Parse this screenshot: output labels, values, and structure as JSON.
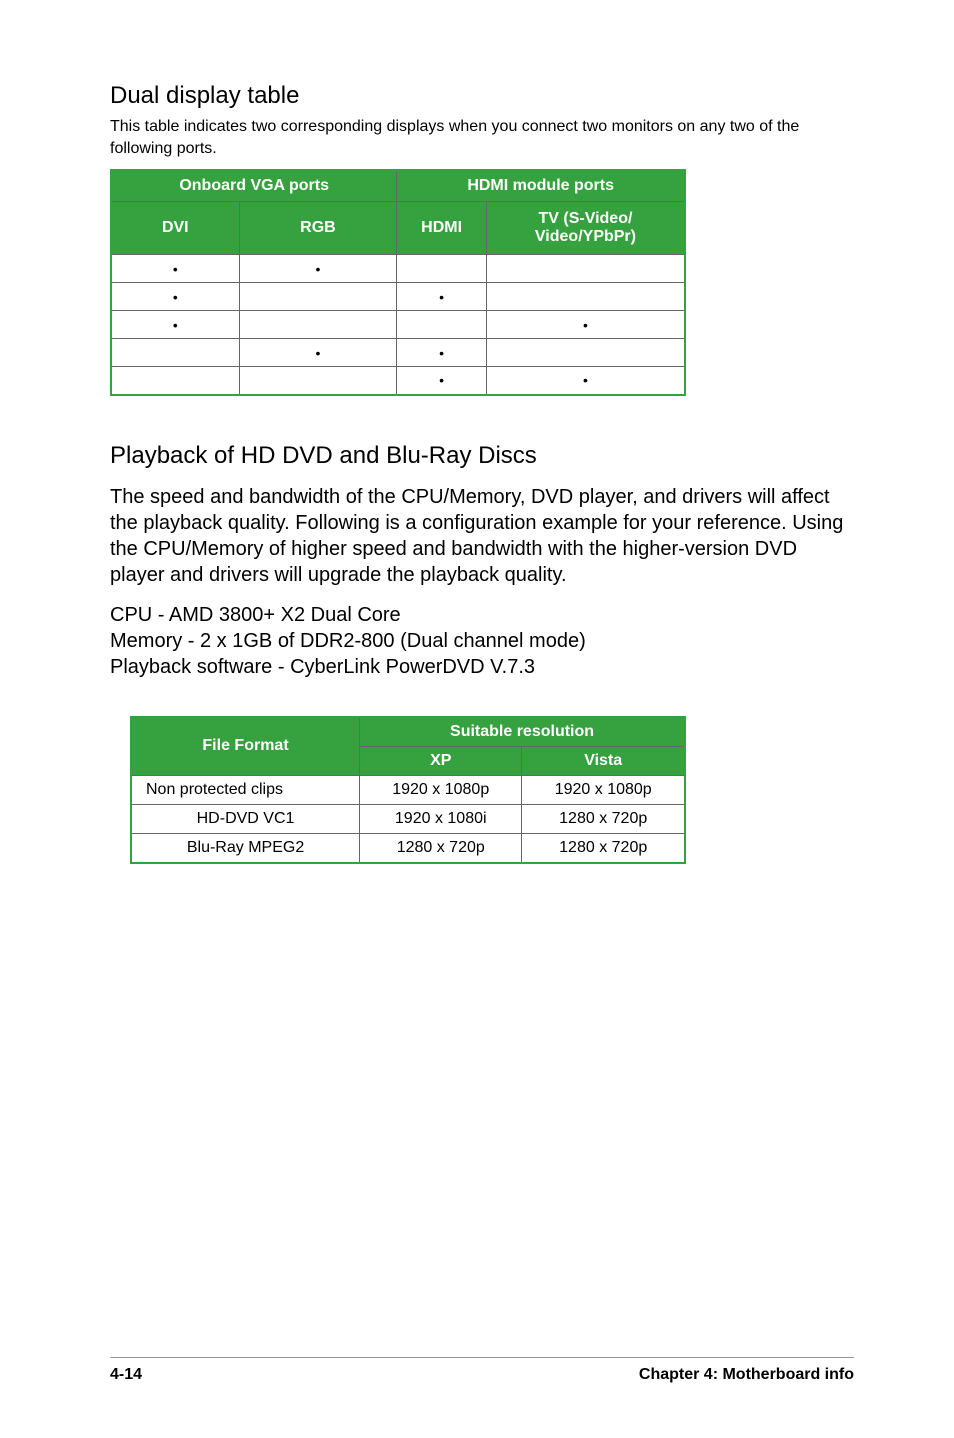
{
  "section1": {
    "heading": "Dual display table",
    "intro": "This table indicates two corresponding displays when you connect two monitors on any two of the following ports.",
    "border_color": "#36a13f",
    "header_bg": "#36a13f",
    "group_headers": [
      "Onboard VGA ports",
      "HDMI module ports"
    ],
    "sub_headers": [
      "DVI",
      "RGB",
      "HDMI",
      "TV (S-Video/\nVideo/YPbPr)"
    ],
    "rows": [
      [
        "•",
        "•",
        "",
        ""
      ],
      [
        "•",
        "",
        "•",
        ""
      ],
      [
        "•",
        "",
        "",
        "•"
      ],
      [
        "",
        "•",
        "•",
        ""
      ],
      [
        "",
        "",
        "•",
        "•"
      ]
    ]
  },
  "section2": {
    "heading": "Playback of HD DVD and Blu-Ray Discs",
    "para": "The speed and bandwidth of the CPU/Memory, DVD player, and drivers will affect the playback quality. Following is a configuration example for your reference. Using the CPU/Memory of higher speed and bandwidth with the higher-version DVD player and drivers will upgrade the playback quality.",
    "spec_lines": [
      "CPU - AMD 3800+ X2 Dual Core",
      "Memory - 2 x 1GB of DDR2-800 (Dual channel mode)",
      "Playback software - CyberLink PowerDVD V.7.3"
    ]
  },
  "table2": {
    "border_color": "#36a13f",
    "header_bg": "#36a13f",
    "file_format_label": "File Format",
    "suitable_label": "Suitable resolution",
    "sub_headers": [
      "XP",
      "Vista"
    ],
    "rows": [
      {
        "name": "Non protected clips",
        "xp": "1920 x 1080p",
        "vista": "1920 x 1080p",
        "align": "left"
      },
      {
        "name": "HD-DVD VC1",
        "xp": "1920 x 1080i",
        "vista": "1280 x 720p",
        "align": "center"
      },
      {
        "name": "Blu-Ray MPEG2",
        "xp": "1280 x 720p",
        "vista": "1280 x 720p",
        "align": "center"
      }
    ]
  },
  "footer": {
    "left": "4-14",
    "right": "Chapter 4: Motherboard info"
  }
}
